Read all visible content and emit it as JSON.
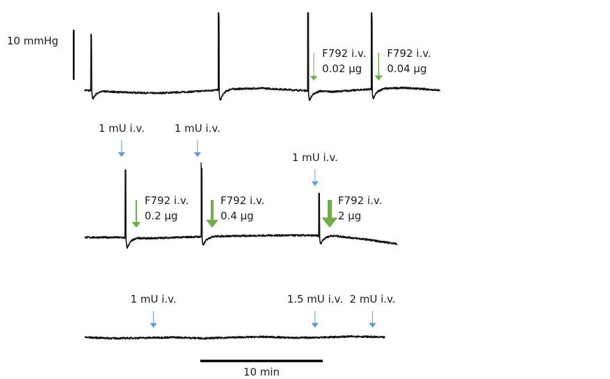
{
  "colors": {
    "trace": "#111111",
    "blue": "#5b9bd5",
    "green": "#70ad47",
    "bar": "#000000"
  },
  "scale_bars": {
    "pressure_label": "10 mmHg",
    "time_label": "10 min"
  },
  "chart_data": {
    "type": "line",
    "title": "",
    "xlabel": "",
    "ylabel": "",
    "grid": false,
    "legend": "none",
    "y_scale_mmHg": 10,
    "x_scale_min": 10,
    "panels": [
      {
        "name": "row1",
        "duration_min": 29,
        "baseline_drift_mmHg": [
          0,
          -0.4,
          -0.6,
          -0.3,
          0.2,
          0.4,
          0,
          -0.3,
          0.2,
          0.5,
          0
        ],
        "spikes": [
          {
            "t_min": 0.5,
            "peak_mmHg": 11.2,
            "trough_mmHg": -2.4
          },
          {
            "t_min": 10.9,
            "peak_mmHg": 15.5,
            "trough_mmHg": -3.2
          },
          {
            "t_min": 18.2,
            "peak_mmHg": 15.5,
            "trough_mmHg": -2.8
          },
          {
            "t_min": 23.4,
            "peak_mmHg": 15.5,
            "trough_mmHg": -2.9
          }
        ],
        "injections": [
          {
            "t_min": 18.7,
            "color": "green",
            "weight": 1,
            "label_lines": [
              "F792 i.v.",
              "0.02 μg"
            ]
          },
          {
            "t_min": 24.0,
            "color": "green",
            "weight": 1.5,
            "label_lines": [
              "F792 i.v.",
              "0.04 μg"
            ]
          }
        ]
      },
      {
        "name": "row2",
        "duration_min": 25.5,
        "baseline_drift_mmHg": [
          0,
          0,
          -0.2,
          0,
          0.2,
          0.3,
          0.4,
          0.4,
          0.3,
          -0.4,
          -1.3
        ],
        "spikes": [
          {
            "t_min": 3.3,
            "peak_mmHg": 13.5,
            "trough_mmHg": -3.0
          },
          {
            "t_min": 9.5,
            "peak_mmHg": 15.0,
            "trough_mmHg": -2.6
          },
          {
            "t_min": 19.1,
            "peak_mmHg": 8.8,
            "trough_mmHg": -2.4
          }
        ],
        "injections": [
          {
            "t_min": 3.0,
            "color": "blue",
            "weight": 1,
            "label_lines": [
              "1 mU i.v."
            ]
          },
          {
            "t_min": 9.2,
            "color": "blue",
            "weight": 1,
            "label_lines": [
              "1 mU i.v."
            ]
          },
          {
            "t_min": 18.8,
            "color": "blue",
            "weight": 1,
            "label_lines": [
              "1 mU i.v."
            ]
          },
          {
            "t_min": 4.2,
            "color": "green",
            "weight": 2,
            "label_lines": [
              "F792 i.v.",
              "0.2 μg"
            ]
          },
          {
            "t_min": 10.4,
            "color": "green",
            "weight": 4,
            "label_lines": [
              "F792 i.v.",
              "0.4 μg"
            ]
          },
          {
            "t_min": 20.0,
            "color": "green",
            "weight": 6,
            "label_lines": [
              "F792 i.v.",
              "2 μg"
            ]
          }
        ]
      },
      {
        "name": "row3",
        "duration_min": 24.5,
        "baseline_drift_mmHg": [
          0,
          -0.2,
          -0.1,
          0,
          -0.2,
          0,
          0.1,
          -0.1,
          0,
          0.2,
          0
        ],
        "spikes": [],
        "injections": [
          {
            "t_min": 5.6,
            "color": "blue",
            "weight": 1,
            "label_lines": [
              "1 mU i.v."
            ]
          },
          {
            "t_min": 18.8,
            "color": "blue",
            "weight": 1,
            "label_lines": [
              "1.5 mU i.v."
            ]
          },
          {
            "t_min": 23.5,
            "color": "blue",
            "weight": 1,
            "label_lines": [
              "2 mU i.v."
            ]
          }
        ]
      }
    ]
  }
}
